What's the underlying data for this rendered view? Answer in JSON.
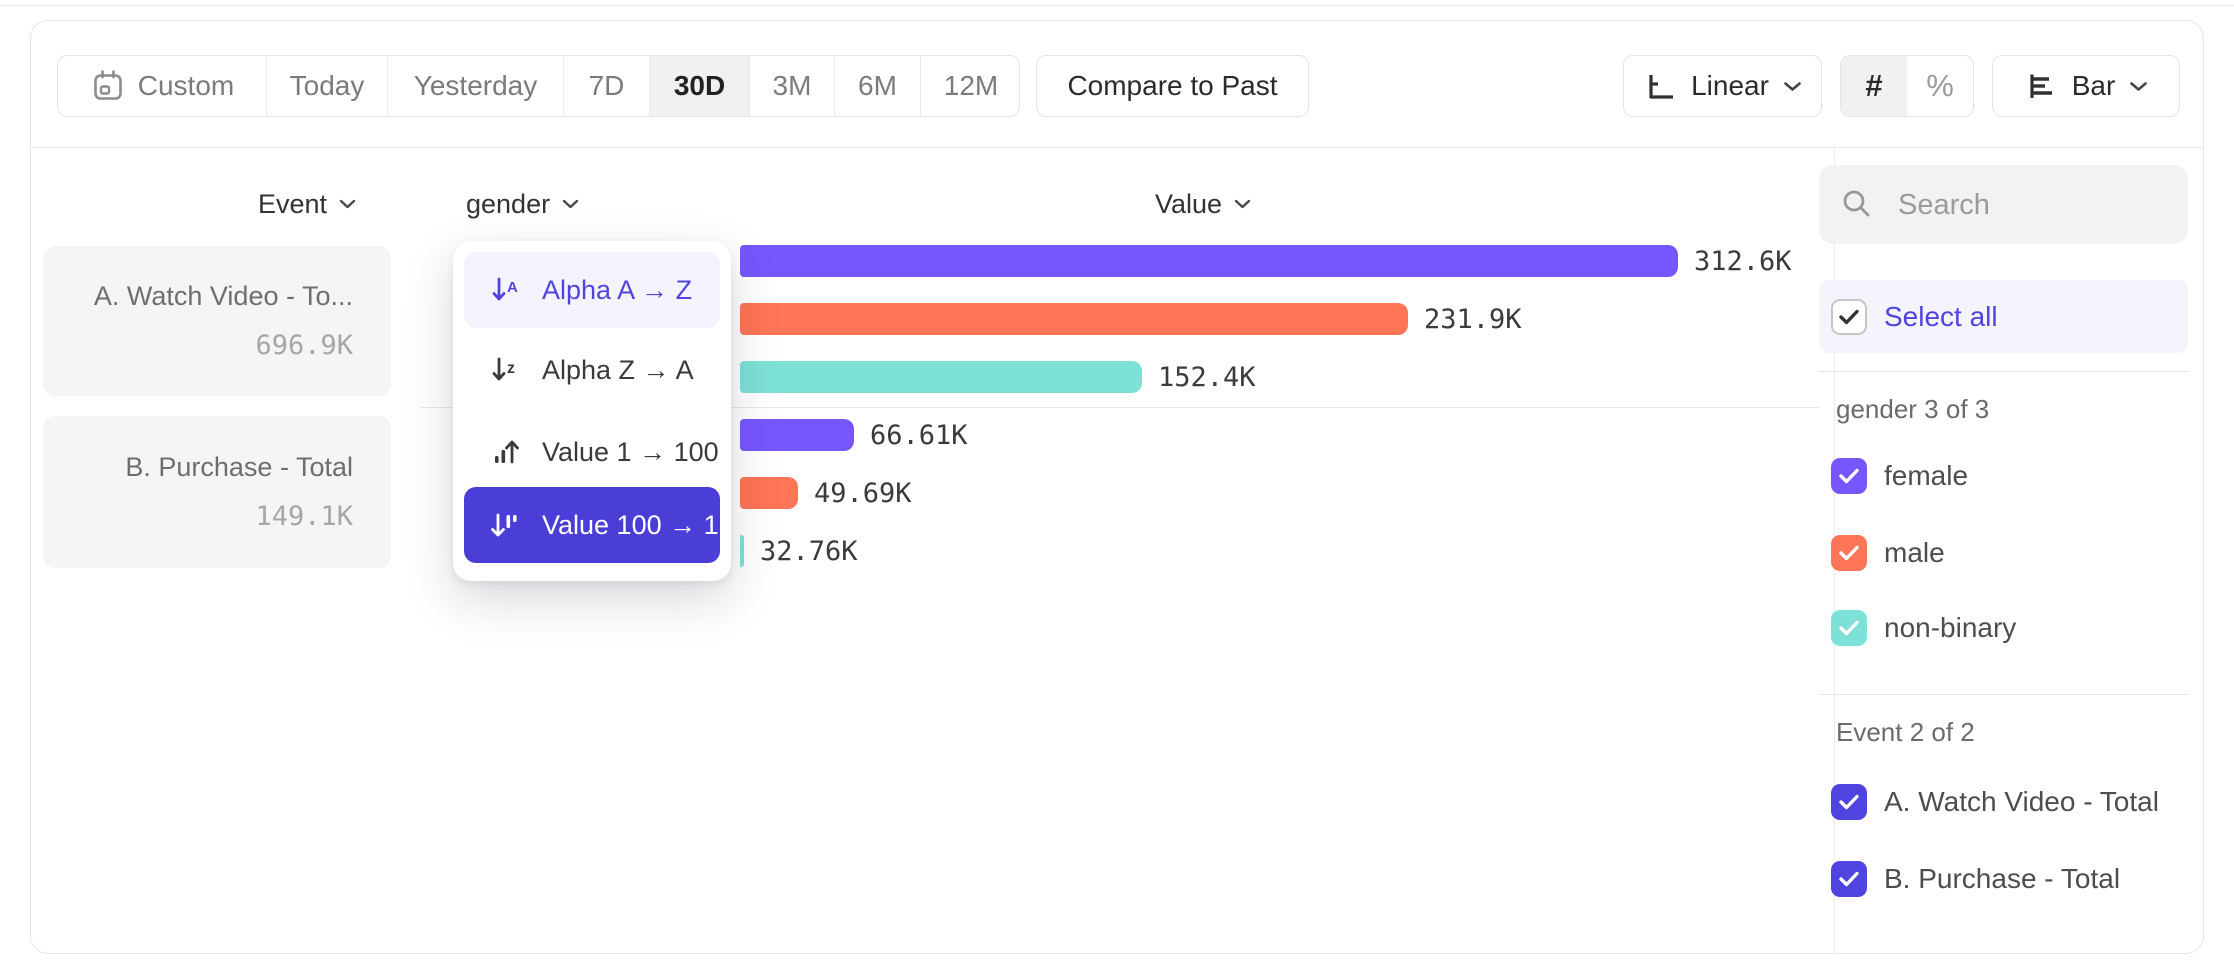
{
  "toolbar": {
    "date_ranges": [
      "Custom",
      "Today",
      "Yesterday",
      "7D",
      "30D",
      "3M",
      "6M",
      "12M"
    ],
    "selected_range": "30D",
    "compare_label": "Compare to Past",
    "scale_label": "Linear",
    "number_symbol": "#",
    "percent_symbol": "%",
    "chart_type_label": "Bar"
  },
  "columns": {
    "event": "Event",
    "breakdown": "gender",
    "value": "Value"
  },
  "event_cards": [
    {
      "name": "A. Watch Video - To...",
      "total": "696.9K"
    },
    {
      "name": "B. Purchase - Total",
      "total": "149.1K"
    }
  ],
  "sort_menu": {
    "items": [
      {
        "label": "Alpha A → Z",
        "icon": "sort-alpha-asc",
        "state": "highlighted"
      },
      {
        "label": "Alpha Z → A",
        "icon": "sort-alpha-desc",
        "state": "normal"
      },
      {
        "label": "Value 1 → 100",
        "icon": "sort-value-asc",
        "state": "normal"
      },
      {
        "label": "Value 100 → 1",
        "icon": "sort-value-desc",
        "state": "selected"
      }
    ]
  },
  "chart_data": {
    "type": "bar",
    "orientation": "horizontal",
    "value_axis_label": "Value",
    "xlim": [
      32500,
      312600
    ],
    "sort_applied": "Value 100 → 1",
    "groups": [
      {
        "event": "A. Watch Video - Total",
        "bars": [
          {
            "category": "female",
            "value": 312600,
            "label": "312.6K",
            "color": "#7856FF"
          },
          {
            "category": "male",
            "value": 231900,
            "label": "231.9K",
            "color": "#FF7557"
          },
          {
            "category": "non-binary",
            "value": 152400,
            "label": "152.4K",
            "color": "#7EE1D7"
          }
        ]
      },
      {
        "event": "B. Purchase - Total",
        "bars": [
          {
            "category": "female",
            "value": 66610,
            "label": "66.61K",
            "color": "#7856FF"
          },
          {
            "category": "male",
            "value": 49690,
            "label": "49.69K",
            "color": "#FF7557"
          },
          {
            "category": "non-binary",
            "value": 32760,
            "label": "32.76K",
            "color": "#7EE1D7"
          }
        ]
      }
    ]
  },
  "sidebar": {
    "search_placeholder": "Search",
    "select_all_label": "Select all",
    "sections": [
      {
        "title": "gender 3 of 3",
        "rows": [
          {
            "label": "female",
            "checked": true,
            "color": "#7856FF"
          },
          {
            "label": "male",
            "checked": true,
            "color": "#FF7557"
          },
          {
            "label": "non-binary",
            "checked": true,
            "color": "#7EE1D7"
          }
        ]
      },
      {
        "title": "Event 2 of 2",
        "rows": [
          {
            "label": "A. Watch Video - Total",
            "checked": true,
            "color": "#4F44E0"
          },
          {
            "label": "B. Purchase - Total",
            "checked": true,
            "color": "#4F44E0"
          }
        ]
      }
    ]
  },
  "colors": {
    "accent": "#4F44E0",
    "selected_sort_bg": "#4B3ED6",
    "purple": "#7856FF",
    "orange": "#FF7557",
    "teal": "#7EE1D7"
  }
}
